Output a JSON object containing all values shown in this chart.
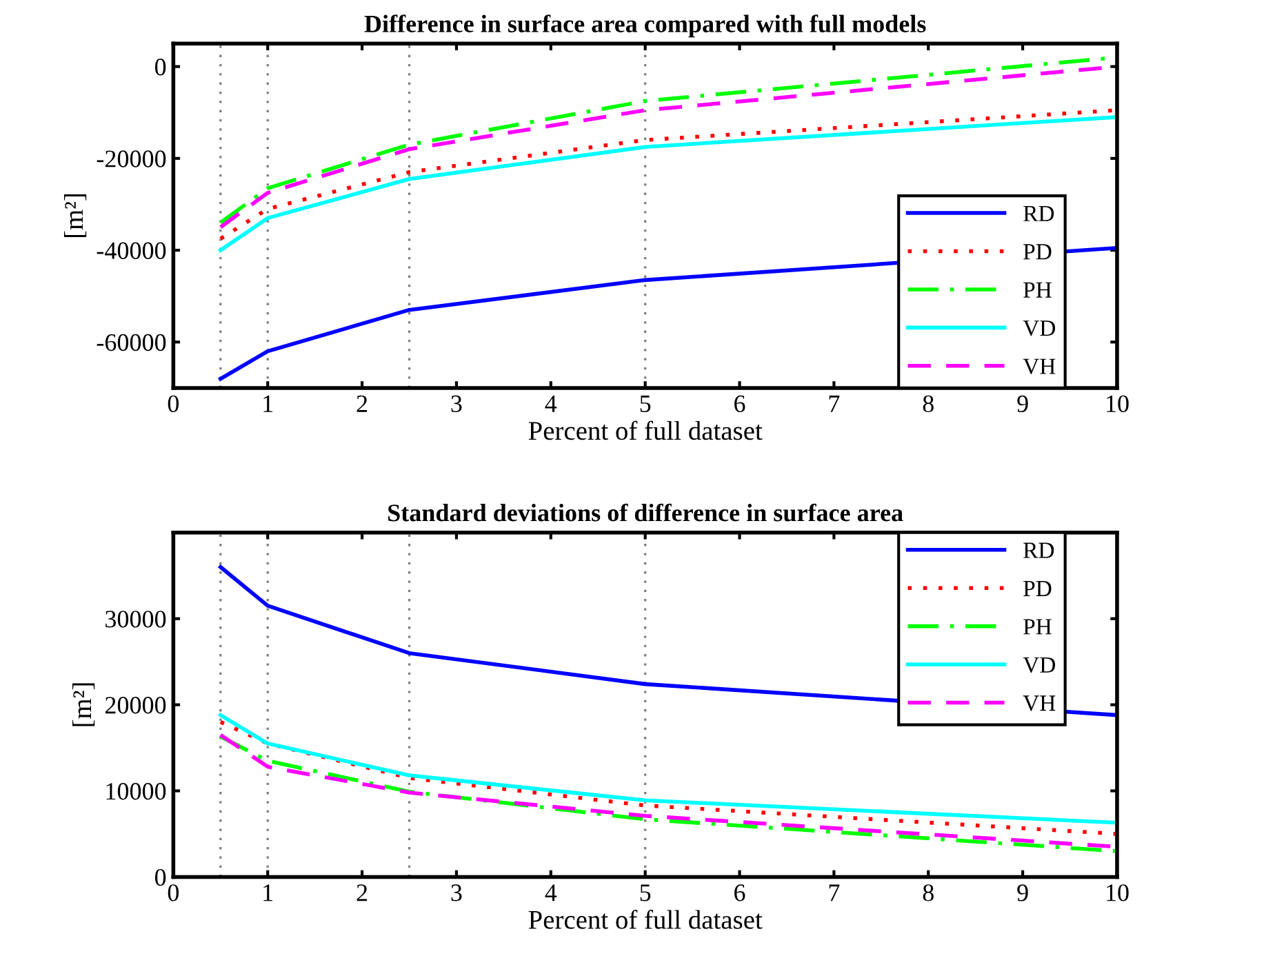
{
  "chart_data": [
    {
      "type": "line",
      "title": "Difference in surface area compared with full models",
      "xlabel": "Percent of full dataset",
      "ylabel": "[m²]",
      "x": [
        0.5,
        1,
        2.5,
        5,
        10
      ],
      "xlim": [
        0,
        10
      ],
      "xticks": [
        0,
        1,
        2,
        3,
        4,
        5,
        6,
        7,
        8,
        9,
        10
      ],
      "ylim": [
        -70000,
        5000
      ],
      "yticks": [
        -60000,
        -40000,
        -20000,
        0
      ],
      "legend": "bottom right",
      "grid": false,
      "marker": "none",
      "ref_lines": [
        {
          "axis": "x",
          "value": 0.5,
          "color": "#808080",
          "line_style": "dotted"
        },
        {
          "axis": "x",
          "value": 1,
          "color": "#808080",
          "line_style": "dotted"
        },
        {
          "axis": "x",
          "value": 2.5,
          "color": "#808080",
          "line_style": "dotted"
        },
        {
          "axis": "x",
          "value": 5,
          "color": "#808080",
          "line_style": "dotted"
        }
      ],
      "series": [
        {
          "name": "RD",
          "color": "#0000ff",
          "line_style": "solid",
          "values": [
            -68000,
            -62000,
            -53000,
            -46500,
            -39500
          ]
        },
        {
          "name": "PD",
          "color": "#ff0000",
          "line_style": "dotted",
          "values": [
            -37500,
            -31000,
            -23000,
            -16000,
            -9500
          ]
        },
        {
          "name": "PH",
          "color": "#00ff00",
          "line_style": "dashdot",
          "values": [
            -34000,
            -26500,
            -17000,
            -7500,
            2000
          ]
        },
        {
          "name": "VD",
          "color": "#00ffff",
          "line_style": "solid",
          "values": [
            -40000,
            -33000,
            -24500,
            -17500,
            -11000
          ]
        },
        {
          "name": "VH",
          "color": "#ff00ff",
          "line_style": "dashed",
          "values": [
            -35000,
            -27500,
            -18000,
            -9500,
            0
          ]
        }
      ]
    },
    {
      "type": "line",
      "title": "Standard deviations of difference in surface area",
      "xlabel": "Percent of full dataset",
      "ylabel": "[m²]",
      "x": [
        0.5,
        1,
        2.5,
        5,
        10
      ],
      "xlim": [
        0,
        10
      ],
      "xticks": [
        0,
        1,
        2,
        3,
        4,
        5,
        6,
        7,
        8,
        9,
        10
      ],
      "ylim": [
        0,
        40000
      ],
      "yticks": [
        0,
        10000,
        20000,
        30000
      ],
      "legend": "top right",
      "grid": false,
      "marker": "none",
      "ref_lines": [
        {
          "axis": "x",
          "value": 0.5,
          "color": "#808080",
          "line_style": "dotted"
        },
        {
          "axis": "x",
          "value": 1,
          "color": "#808080",
          "line_style": "dotted"
        },
        {
          "axis": "x",
          "value": 2.5,
          "color": "#808080",
          "line_style": "dotted"
        },
        {
          "axis": "x",
          "value": 5,
          "color": "#808080",
          "line_style": "dotted"
        }
      ],
      "series": [
        {
          "name": "RD",
          "color": "#0000ff",
          "line_style": "solid",
          "values": [
            36000,
            31500,
            26000,
            22400,
            18800
          ]
        },
        {
          "name": "PD",
          "color": "#ff0000",
          "line_style": "dotted",
          "values": [
            18000,
            15500,
            11500,
            8300,
            5000
          ]
        },
        {
          "name": "PH",
          "color": "#00ff00",
          "line_style": "dashdot",
          "values": [
            16300,
            13500,
            9900,
            6700,
            3000
          ]
        },
        {
          "name": "VD",
          "color": "#00ffff",
          "line_style": "solid",
          "values": [
            18800,
            15500,
            11800,
            8900,
            6300
          ]
        },
        {
          "name": "VH",
          "color": "#ff00ff",
          "line_style": "dashed",
          "values": [
            16500,
            12800,
            9800,
            7100,
            3500
          ]
        }
      ]
    }
  ]
}
